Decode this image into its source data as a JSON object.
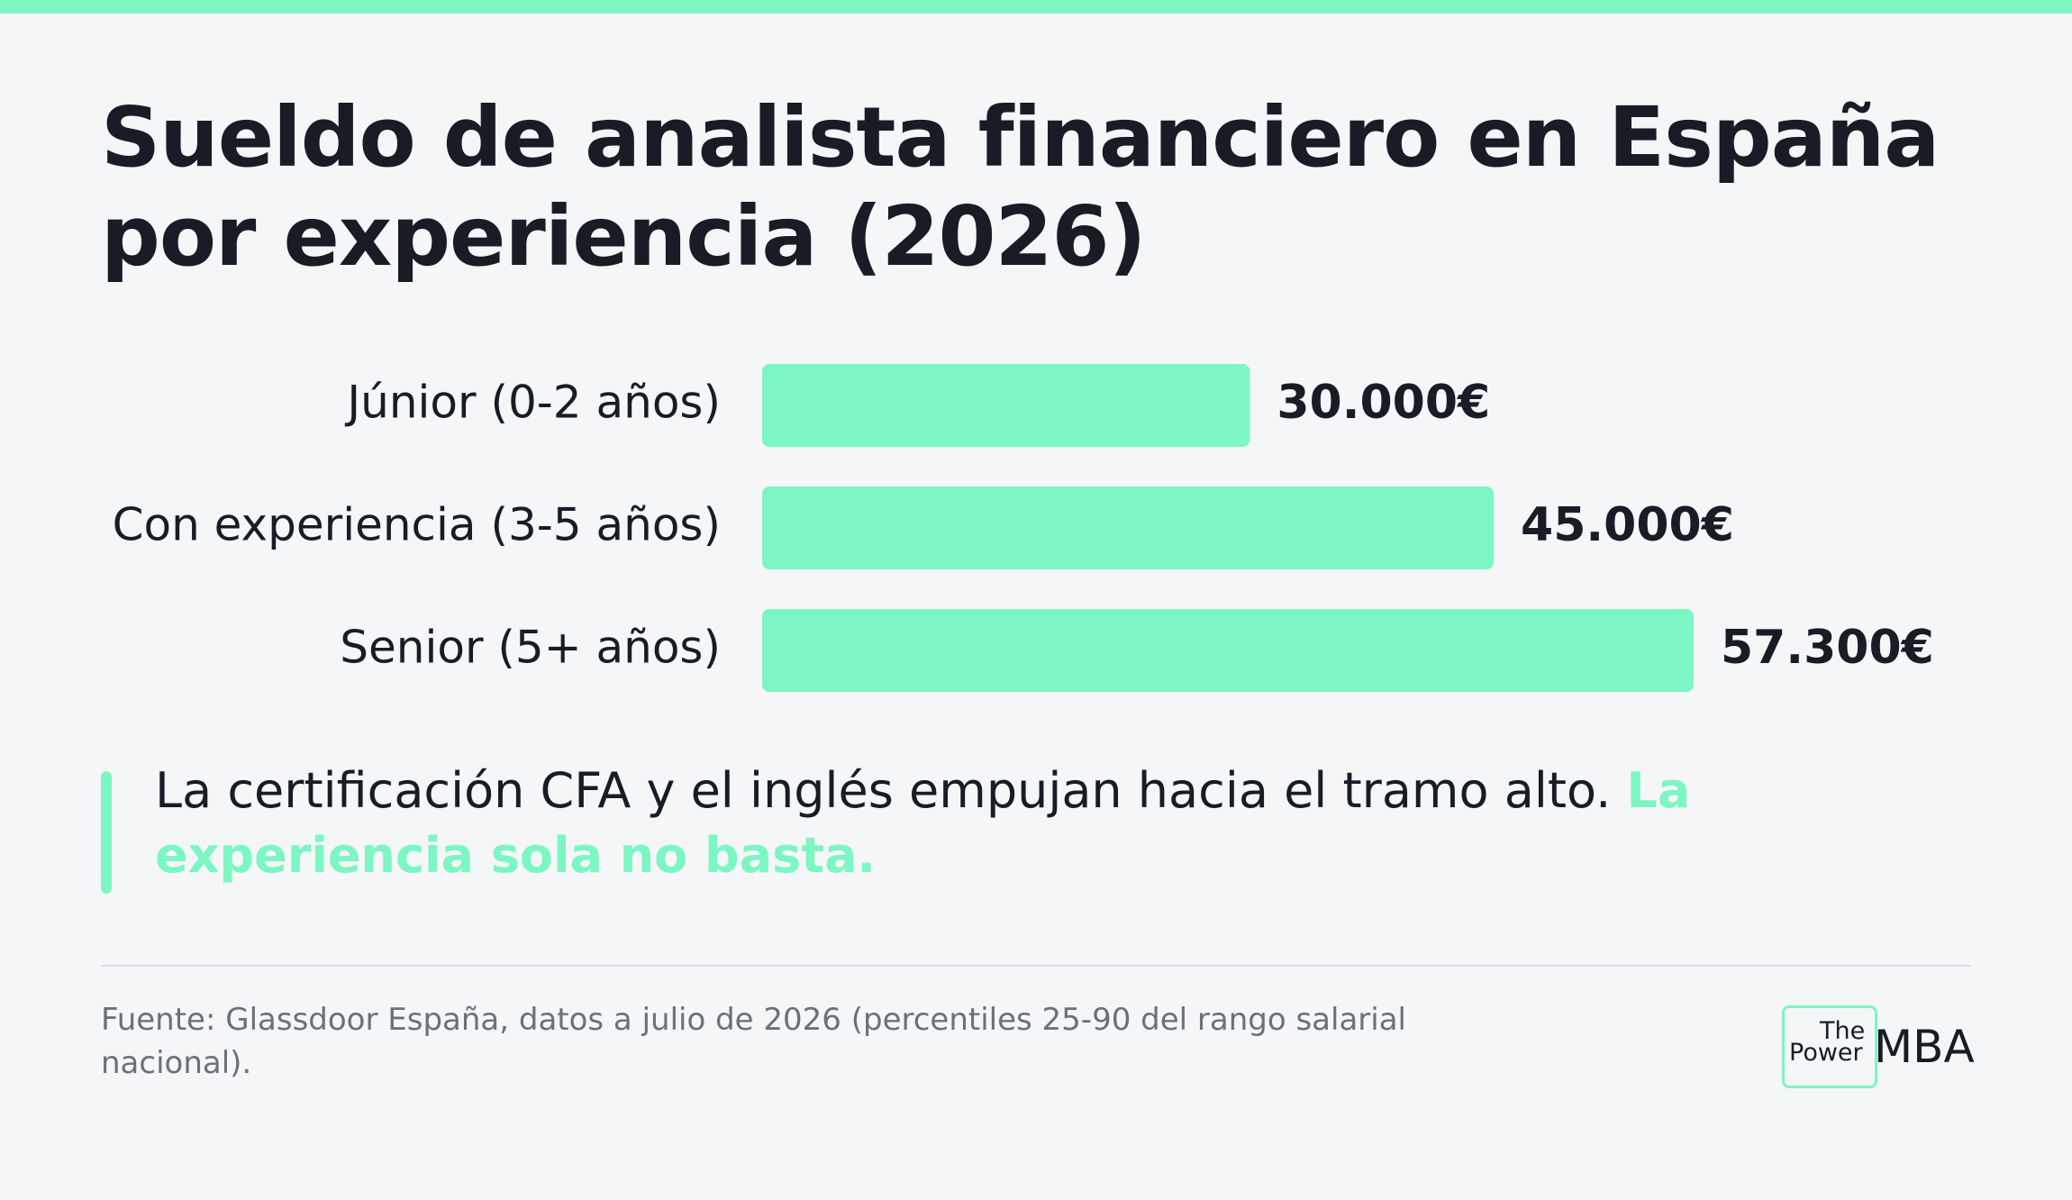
{
  "title": "Sueldo de analista financiero en España por experiencia (2026)",
  "colors": {
    "accent": "#7cf6c2",
    "text": "#171c25",
    "muted": "#6b7079",
    "background": "#f4f6f8"
  },
  "chart_data": {
    "type": "bar",
    "orientation": "horizontal",
    "title": "Sueldo de analista financiero en España por experiencia (2026)",
    "categories": [
      "Júnior (0-2 años)",
      "Con experiencia (3-5 años)",
      "Senior (5+ años)"
    ],
    "values": [
      30000,
      45000,
      57300
    ],
    "value_labels": [
      "30.000€",
      "45.000€",
      "57.300€"
    ],
    "unit": "€",
    "xlim": [
      0,
      57300
    ],
    "grid": false,
    "legend": "none"
  },
  "callout": {
    "text": "La certificación CFA y el inglés empujan hacia el tramo alto.",
    "highlight": "La experiencia sola no basta."
  },
  "source": "Fuente: Glassdoor España, datos a julio de 2026 (percentiles 25-90 del rango salarial nacional).",
  "logo": {
    "the": "The",
    "power": "Power",
    "mba": "MBA"
  }
}
